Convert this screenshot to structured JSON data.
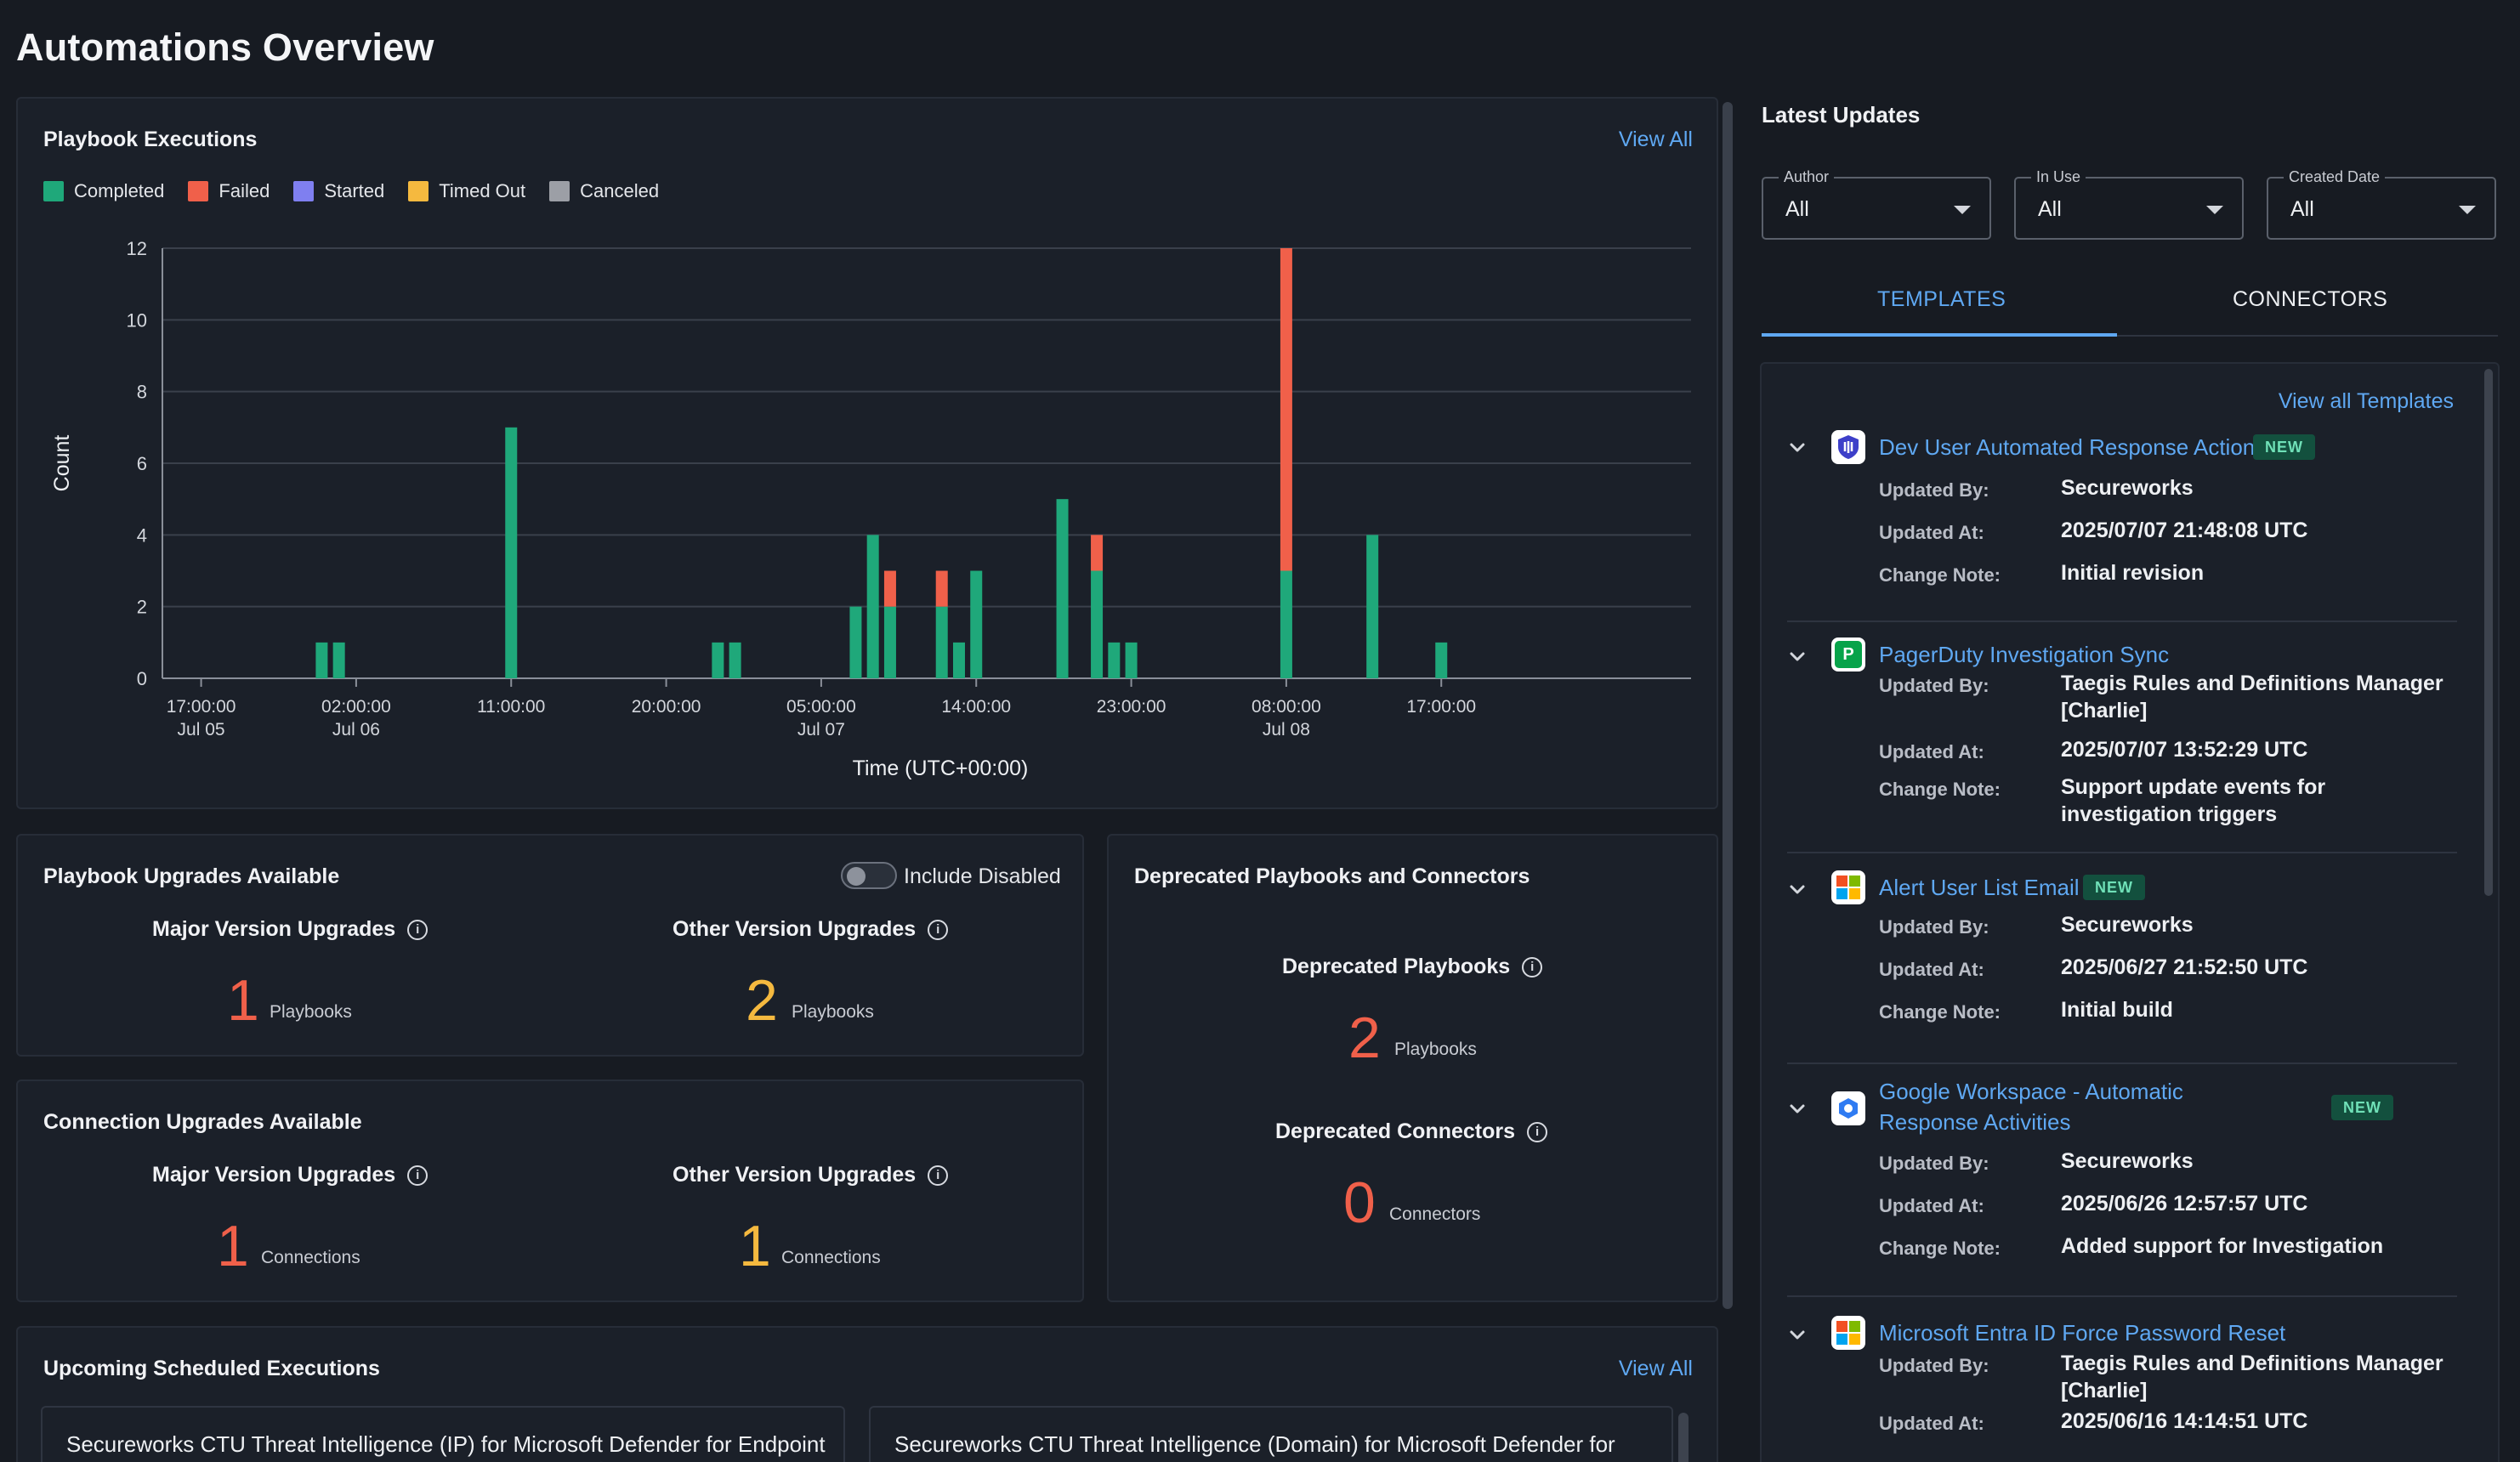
{
  "page": {
    "title": "Automations Overview"
  },
  "executions": {
    "title": "Playbook Executions",
    "view_all": "View All",
    "legend": [
      {
        "label": "Completed",
        "color": "#1fa87a"
      },
      {
        "label": "Failed",
        "color": "#f0604a"
      },
      {
        "label": "Started",
        "color": "#7f7ff0"
      },
      {
        "label": "Timed Out",
        "color": "#f5b93f"
      },
      {
        "label": "Canceled",
        "color": "#9c9fa6"
      }
    ]
  },
  "chart_data": {
    "type": "bar",
    "stacked": true,
    "xlabel": "Time (UTC+00:00)",
    "ylabel": "Count",
    "ylim": [
      0,
      12
    ],
    "yticks": [
      0,
      2,
      4,
      6,
      8,
      10,
      12
    ],
    "x_unit": "hours since 2025-07-05 12:00 UTC",
    "xlim": [
      2.75,
      91.5
    ],
    "xticks": [
      {
        "label": "17:00:00",
        "sub": "Jul 05",
        "x": 5
      },
      {
        "label": "02:00:00",
        "sub": "Jul 06",
        "x": 14
      },
      {
        "label": "11:00:00",
        "sub": "",
        "x": 23
      },
      {
        "label": "20:00:00",
        "sub": "",
        "x": 32
      },
      {
        "label": "05:00:00",
        "sub": "Jul 07",
        "x": 41
      },
      {
        "label": "14:00:00",
        "sub": "",
        "x": 50
      },
      {
        "label": "23:00:00",
        "sub": "",
        "x": 59
      },
      {
        "label": "08:00:00",
        "sub": "Jul 08",
        "x": 68
      },
      {
        "label": "17:00:00",
        "sub": "",
        "x": 77
      }
    ],
    "x": [
      12,
      13,
      23,
      35,
      36,
      43,
      44,
      45,
      48,
      49,
      50,
      55,
      57,
      58,
      59,
      68,
      73,
      77
    ],
    "series": [
      {
        "name": "Completed",
        "color": "#1fa87a",
        "values": [
          1,
          1,
          7,
          1,
          1,
          2,
          4,
          2,
          2,
          1,
          3,
          5,
          3,
          1,
          1,
          3,
          4,
          1
        ]
      },
      {
        "name": "Failed",
        "color": "#f0604a",
        "values": [
          0,
          0,
          0,
          0,
          0,
          0,
          0,
          1,
          1,
          0,
          0,
          0,
          1,
          0,
          0,
          9,
          0,
          0
        ]
      }
    ]
  },
  "upgrades": {
    "title": "Playbook Upgrades Available",
    "toggle_label": "Include Disabled",
    "major_label": "Major Version Upgrades",
    "major_value": "1",
    "major_unit": "Playbooks",
    "other_label": "Other Version Upgrades",
    "other_value": "2",
    "other_unit": "Playbooks"
  },
  "connections": {
    "title": "Connection Upgrades Available",
    "major_label": "Major Version Upgrades",
    "major_value": "1",
    "major_unit": "Connections",
    "other_label": "Other Version Upgrades",
    "other_value": "1",
    "other_unit": "Connections"
  },
  "deprecated": {
    "title": "Deprecated Playbooks and Connectors",
    "playbooks_label": "Deprecated Playbooks",
    "playbooks_value": "2",
    "playbooks_unit": "Playbooks",
    "connectors_label": "Deprecated Connectors",
    "connectors_value": "0",
    "connectors_unit": "Connectors"
  },
  "scheduled": {
    "title": "Upcoming Scheduled Executions",
    "view_all": "View All",
    "items": [
      "Secureworks CTU Threat Intelligence (IP) for Microsoft Defender for Endpoint",
      "Secureworks CTU Threat Intelligence (Domain) for Microsoft Defender for"
    ]
  },
  "updates": {
    "title": "Latest Updates",
    "filters": [
      {
        "label": "Author",
        "value": "All"
      },
      {
        "label": "In Use",
        "value": "All"
      },
      {
        "label": "Created Date",
        "value": "All"
      }
    ],
    "tabs": [
      "TEMPLATES",
      "CONNECTORS"
    ],
    "view_all_templates": "View all Templates",
    "badge_new": "NEW",
    "keys": {
      "updated_by": "Updated By:",
      "updated_at": "Updated At:",
      "change_note": "Change Note:"
    },
    "templates": [
      {
        "name": "Dev User Automated Response Actions",
        "icon": "shield-logo-icon",
        "new": true,
        "updated_by": "Secureworks",
        "updated_at": "2025/07/07 21:48:08 UTC",
        "change_note": "Initial revision"
      },
      {
        "name": "PagerDuty Investigation Sync",
        "icon": "pagerduty-logo-icon",
        "new": false,
        "updated_by": "Taegis Rules and Definitions Manager [Charlie]",
        "updated_at": "2025/07/07 13:52:29 UTC",
        "change_note": "Support update events for investigation triggers"
      },
      {
        "name": "Alert User List Email",
        "icon": "microsoft-logo-icon",
        "new": true,
        "updated_by": "Secureworks",
        "updated_at": "2025/06/27 21:52:50 UTC",
        "change_note": "Initial build"
      },
      {
        "name": "Google Workspace - Automatic Response Activities",
        "icon": "google-workspace-logo-icon",
        "new": true,
        "updated_by": "Secureworks",
        "updated_at": "2025/06/26 12:57:57 UTC",
        "change_note": "Added support for Investigation"
      },
      {
        "name": "Microsoft Entra ID Force Password Reset",
        "icon": "microsoft-logo-icon",
        "new": false,
        "updated_by": "Taegis Rules and Definitions Manager [Charlie]",
        "updated_at": "2025/06/16 14:14:51 UTC",
        "change_note": ""
      }
    ]
  }
}
